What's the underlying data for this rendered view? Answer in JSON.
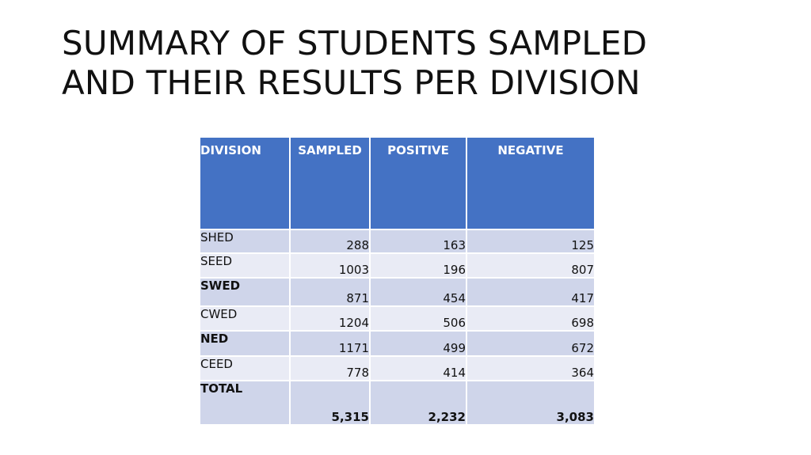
{
  "slide": {
    "title_line1": "SUMMARY OF STUDENTS SAMPLED",
    "title_line2": "AND THEIR RESULTS PER DIVISION"
  },
  "table": {
    "headers": [
      "DIVISION",
      "SAMPLED",
      "POSITIVE",
      "NEGATIVE"
    ],
    "rows": [
      {
        "division": "SHED",
        "sampled": "288",
        "positive": "163",
        "negative": "125"
      },
      {
        "division": "SEED",
        "sampled": "1003",
        "positive": "196",
        "negative": "807"
      },
      {
        "division": "SWED",
        "sampled": "871",
        "positive": "454",
        "negative": "417"
      },
      {
        "division": "CWED",
        "sampled": "1204",
        "positive": "506",
        "negative": "698"
      },
      {
        "division": "NED",
        "sampled": "1171",
        "positive": "499",
        "negative": "672"
      },
      {
        "division": "CEED",
        "sampled": "778",
        "positive": "414",
        "negative": "364"
      },
      {
        "division": "TOTAL",
        "sampled": "5,315",
        "positive": "2,232",
        "negative": "3,083"
      }
    ]
  },
  "colors": {
    "header_bg": "#4472c4",
    "row_band_dark": "#cfd5ea",
    "row_band_light": "#e9ebf5"
  }
}
